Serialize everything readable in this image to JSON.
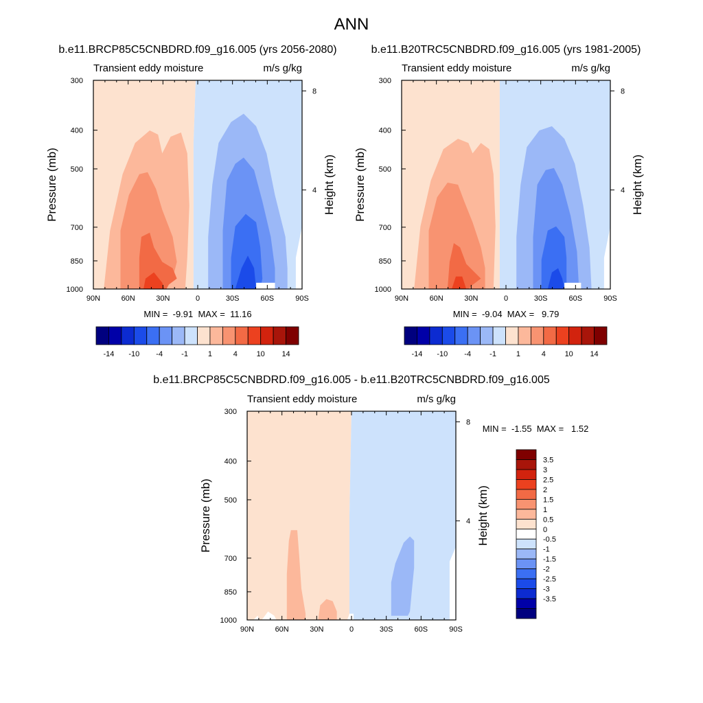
{
  "figure": {
    "title": "ANN",
    "colors": {
      "cbar12": [
        "#00007f",
        "#0000a8",
        "#0c2bd1",
        "#1b4be9",
        "#3b6ff3",
        "#6b93f5",
        "#9bb8f7",
        "#cde2fc",
        "#fde2cf",
        "#fcb89b",
        "#f89371",
        "#f26a45",
        "#ec411f",
        "#d2230e",
        "#a8150a",
        "#7f0000"
      ],
      "cbar3": [
        "#00007f",
        "#0000a8",
        "#0c2bd1",
        "#1b4be9",
        "#3b6ff3",
        "#6b93f5",
        "#9bb8f7",
        "#cde2fc",
        "#ffffff",
        "#fde2cf",
        "#fcb89b",
        "#f89371",
        "#f26a45",
        "#ec411f",
        "#d2230e",
        "#a8150a",
        "#7f0000"
      ]
    }
  },
  "chart_data": [
    {
      "type": "heatmap",
      "title": "b.e11.BRCP85C5CNBDRD.f09_g16.005 (yrs 2056-2080)",
      "subtitle_left": "Transient eddy moisture",
      "subtitle_right": "m/s g/kg",
      "ylabel": "Pressure (mb)",
      "ylabel_right": "Height (km)",
      "x_ticks": [
        "90N",
        "60N",
        "30N",
        "0",
        "30S",
        "60S",
        "90S"
      ],
      "y_ticks": [
        "300",
        "400",
        "500",
        "700",
        "850",
        "1000"
      ],
      "y_ticks_right": [
        "8",
        "4"
      ],
      "min_max_text": "MIN =  -9.91  MAX =  11.16",
      "min": -9.91,
      "max": 11.16,
      "xlim": [
        90,
        -90
      ],
      "ylim": [
        1000,
        300
      ],
      "colorbar_labels": [
        "-14",
        "-10",
        "-4",
        "-1",
        "1",
        "4",
        "10",
        "14"
      ]
    },
    {
      "type": "heatmap",
      "title": "b.e11.B20TRC5CNBDRD.f09_g16.005 (yrs 1981-2005)",
      "subtitle_left": "Transient eddy moisture",
      "subtitle_right": "m/s g/kg",
      "ylabel": "Pressure (mb)",
      "ylabel_right": "Height (km)",
      "x_ticks": [
        "90N",
        "60N",
        "30N",
        "0",
        "30S",
        "60S",
        "90S"
      ],
      "y_ticks": [
        "300",
        "400",
        "500",
        "700",
        "850",
        "1000"
      ],
      "y_ticks_right": [
        "8",
        "4"
      ],
      "min_max_text": "MIN =  -9.04  MAX =   9.79",
      "min": -9.04,
      "max": 9.79,
      "xlim": [
        90,
        -90
      ],
      "ylim": [
        1000,
        300
      ],
      "colorbar_labels": [
        "-14",
        "-10",
        "-4",
        "-1",
        "1",
        "4",
        "10",
        "14"
      ]
    },
    {
      "type": "heatmap",
      "title": "b.e11.BRCP85C5CNBDRD.f09_g16.005 - b.e11.B20TRC5CNBDRD.f09_g16.005",
      "subtitle_left": "Transient eddy moisture",
      "subtitle_right": "m/s g/kg",
      "ylabel": "Pressure (mb)",
      "ylabel_right": "Height (km)",
      "x_ticks": [
        "90N",
        "60N",
        "30N",
        "0",
        "30S",
        "60S",
        "90S"
      ],
      "y_ticks": [
        "300",
        "400",
        "500",
        "700",
        "850",
        "1000"
      ],
      "y_ticks_right": [
        "8",
        "4"
      ],
      "min_max_text": "MIN =  -1.55  MAX =   1.52",
      "min": -1.55,
      "max": 1.52,
      "xlim": [
        90,
        -90
      ],
      "ylim": [
        1000,
        300
      ],
      "colorbar_labels": [
        "3.5",
        "3",
        "2.5",
        "2",
        "1.5",
        "1",
        "0.5",
        "0",
        "-0.5",
        "-1",
        "-1.5",
        "-2",
        "-2.5",
        "-3",
        "-3.5"
      ]
    }
  ]
}
